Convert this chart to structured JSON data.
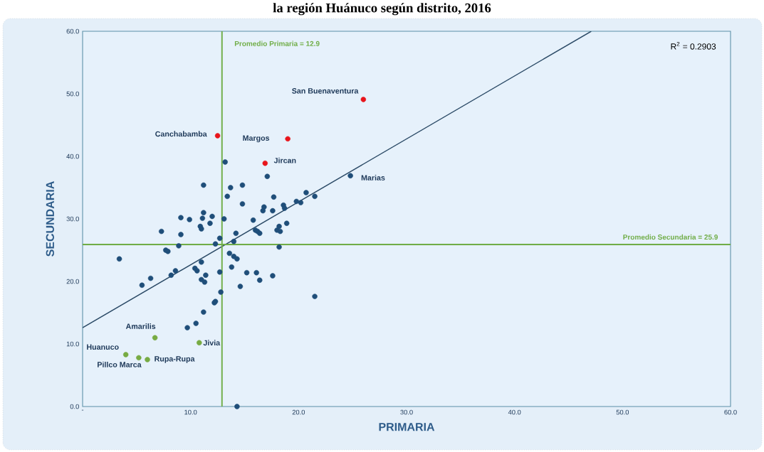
{
  "chart_data": {
    "type": "scatter",
    "title": "la región Huánuco según distrito, 2016",
    "xlabel": "PRIMARIA",
    "ylabel": "SECUNDARIA",
    "xlim": [
      0,
      60
    ],
    "ylim": [
      0,
      60
    ],
    "xticks": [
      {
        "value": 0,
        "label": "-"
      },
      {
        "value": 10,
        "label": "10.0"
      },
      {
        "value": 20,
        "label": "20.0"
      },
      {
        "value": 30,
        "label": "30.0"
      },
      {
        "value": 40,
        "label": "40.0"
      },
      {
        "value": 50,
        "label": "50.0"
      },
      {
        "value": 60,
        "label": "60.0"
      }
    ],
    "yticks": [
      {
        "value": 0,
        "label": "0.0"
      },
      {
        "value": 10,
        "label": "10.0"
      },
      {
        "value": 20,
        "label": "20.0"
      },
      {
        "value": 30,
        "label": "30.0"
      },
      {
        "value": 40,
        "label": "40.0"
      },
      {
        "value": 50,
        "label": "50.0"
      },
      {
        "value": 60,
        "label": "60.0"
      }
    ],
    "grid": false,
    "series": [
      {
        "marker": "circle",
        "color": "#1f4e79",
        "x": [
          13.2,
          11.2,
          13.7,
          14.8,
          17.1,
          13.4,
          17.7,
          14.8,
          20.7,
          21.5,
          19.8,
          20.2,
          16.8,
          16.7,
          17.6,
          18.6,
          18.7,
          24.8,
          11.2,
          9.1,
          9.9,
          11.1,
          12.0,
          13.1,
          11.8,
          10.9,
          11.0,
          7.3,
          9.1,
          12.7,
          12.3,
          8.9,
          7.7,
          7.9,
          3.4,
          15.8,
          16.0,
          16.2,
          16.4,
          18.2,
          18.0,
          18.3,
          18.9,
          14.2,
          14.0,
          18.2,
          13.6,
          14.0,
          14.3,
          11.0,
          13.8,
          10.4,
          10.6,
          8.6,
          8.2,
          6.3,
          5.5,
          11.4,
          11.0,
          11.3,
          12.7,
          15.2,
          16.1,
          16.4,
          17.6,
          14.6,
          21.5,
          12.8,
          12.2,
          12.3,
          11.2,
          10.5,
          9.7,
          14.3
        ],
        "values": [
          39.1,
          35.4,
          35.0,
          35.4,
          36.8,
          33.6,
          33.5,
          32.4,
          34.2,
          33.6,
          32.8,
          32.6,
          31.9,
          31.3,
          31.3,
          32.2,
          31.7,
          36.9,
          31.0,
          30.2,
          29.9,
          30.1,
          30.4,
          30.0,
          29.3,
          28.8,
          28.4,
          28.0,
          27.5,
          26.9,
          26.0,
          25.7,
          25.0,
          24.8,
          23.6,
          29.8,
          28.2,
          28.0,
          27.7,
          28.8,
          28.2,
          28.0,
          29.3,
          27.7,
          26.4,
          25.5,
          24.5,
          24.0,
          23.6,
          23.1,
          22.3,
          22.1,
          21.7,
          21.7,
          21.0,
          20.5,
          19.4,
          21.0,
          20.3,
          19.9,
          21.5,
          21.4,
          21.4,
          20.2,
          20.9,
          19.2,
          17.6,
          18.3,
          16.6,
          16.8,
          15.1,
          13.3,
          12.6,
          0.0
        ]
      },
      {
        "marker": "circle",
        "color": "#e8141b",
        "x": [
          26.0,
          12.5,
          19.0,
          16.9
        ],
        "values": [
          49.1,
          43.3,
          42.8,
          38.9
        ]
      },
      {
        "marker": "circle",
        "color": "#77ab43",
        "x": [
          6.7,
          10.8,
          4.0,
          5.2,
          6.0
        ],
        "values": [
          11.0,
          10.2,
          8.3,
          7.8,
          7.5
        ]
      },
      {
        "type": "line",
        "marker": "none",
        "color": "#2b4a66",
        "x": [
          0,
          47.1
        ],
        "values": [
          12.6,
          60
        ]
      }
    ],
    "ref_lines": [
      {
        "axis": "x",
        "value": 12.9,
        "label": "Promedio Primaria  = 12.9",
        "color": "#70ad47"
      },
      {
        "axis": "y",
        "value": 25.9,
        "label": "Promedio Secundaria  = 25.9",
        "color": "#70ad47"
      }
    ],
    "annotations": [
      "R$^{2}$ = 0.2903",
      {
        "text": "San Buenaventura",
        "x": 26.0,
        "y": 49.1
      },
      {
        "text": "Canchabamba",
        "x": 12.5,
        "y": 43.3
      },
      {
        "text": "Margos",
        "x": 19.0,
        "y": 42.8
      },
      {
        "text": "Jircan",
        "x": 16.9,
        "y": 38.9
      },
      {
        "text": "Marias",
        "x": 24.8,
        "y": 36.9
      },
      {
        "text": "Amarilis",
        "x": 6.7,
        "y": 11.0
      },
      {
        "text": "Jivia",
        "x": 10.8,
        "y": 10.2
      },
      {
        "text": "Huanuco",
        "x": 4.0,
        "y": 8.3
      },
      {
        "text": "Pillco Marca",
        "x": 5.2,
        "y": 7.8
      },
      {
        "text": "Rupa-Rupa",
        "x": 6.0,
        "y": 7.5
      }
    ]
  }
}
